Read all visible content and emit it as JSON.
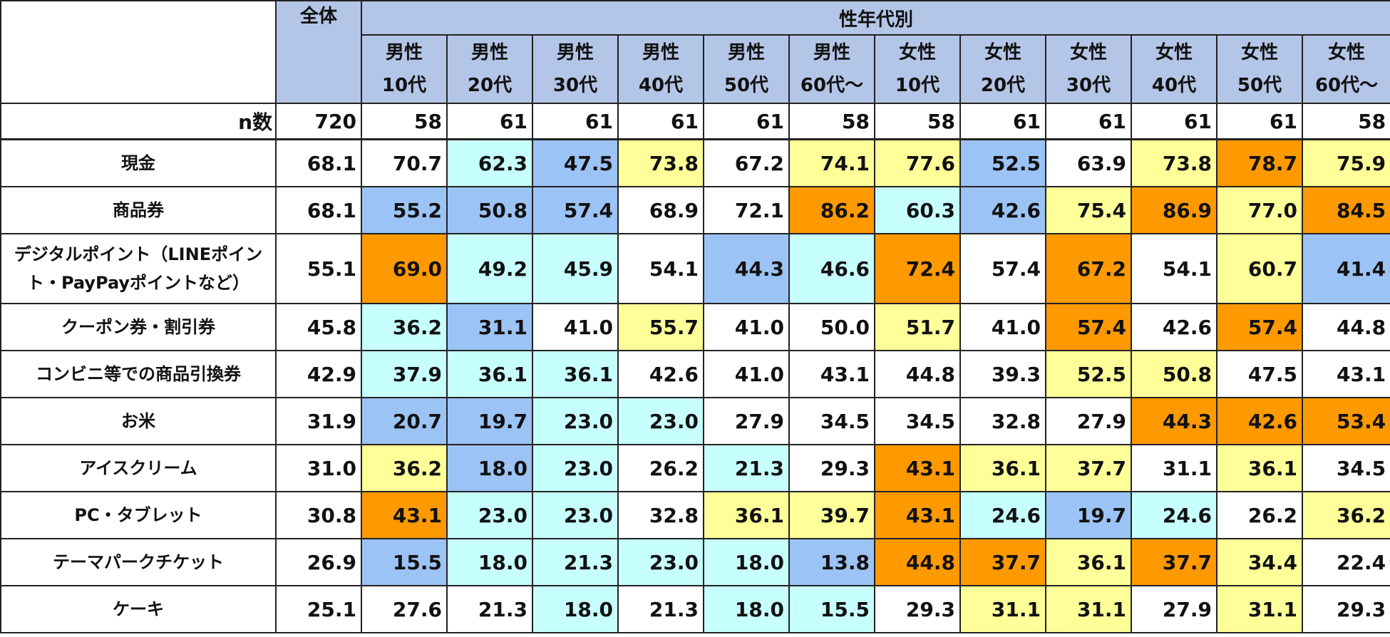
{
  "chart_data": {
    "type": "table",
    "header": {
      "group_label": "性年代別",
      "total_label": "全体",
      "columns": [
        [
          "男性",
          "10代"
        ],
        [
          "男性",
          "20代"
        ],
        [
          "男性",
          "30代"
        ],
        [
          "男性",
          "40代"
        ],
        [
          "男性",
          "50代"
        ],
        [
          "男性",
          "60代〜"
        ],
        [
          "女性",
          "10代"
        ],
        [
          "女性",
          "20代"
        ],
        [
          "女性",
          "30代"
        ],
        [
          "女性",
          "40代"
        ],
        [
          "女性",
          "50代"
        ],
        [
          "女性",
          "60代〜"
        ]
      ]
    },
    "n_label": "n数",
    "n_values": [
      "720",
      "58",
      "61",
      "61",
      "61",
      "61",
      "58",
      "58",
      "61",
      "61",
      "61",
      "61",
      "58"
    ],
    "cell_colors": {
      "none": "#ffffff",
      "light_blue": "#c7ffff",
      "blue": "#9cc3f5",
      "yellow": "#ffff99",
      "orange": "#ff9900"
    },
    "rows": [
      {
        "label": "現金",
        "values": [
          "68.1",
          "70.7",
          "62.3",
          "47.5",
          "73.8",
          "67.2",
          "74.1",
          "77.6",
          "52.5",
          "63.9",
          "73.8",
          "78.7",
          "75.9"
        ],
        "colors": [
          "none",
          "none",
          "light_blue",
          "blue",
          "yellow",
          "none",
          "yellow",
          "yellow",
          "blue",
          "none",
          "yellow",
          "orange",
          "yellow"
        ]
      },
      {
        "label": "商品券",
        "values": [
          "68.1",
          "55.2",
          "50.8",
          "57.4",
          "68.9",
          "72.1",
          "86.2",
          "60.3",
          "42.6",
          "75.4",
          "86.9",
          "77.0",
          "84.5"
        ],
        "colors": [
          "none",
          "blue",
          "blue",
          "blue",
          "none",
          "none",
          "orange",
          "light_blue",
          "blue",
          "yellow",
          "orange",
          "yellow",
          "orange"
        ]
      },
      {
        "label": "デジタルポイント（LINEポイント・PayPayポイントなど）",
        "values": [
          "55.1",
          "69.0",
          "49.2",
          "45.9",
          "54.1",
          "44.3",
          "46.6",
          "72.4",
          "57.4",
          "67.2",
          "54.1",
          "60.7",
          "41.4"
        ],
        "colors": [
          "none",
          "orange",
          "light_blue",
          "light_blue",
          "none",
          "blue",
          "light_blue",
          "orange",
          "none",
          "orange",
          "none",
          "yellow",
          "blue"
        ]
      },
      {
        "label": "クーポン券・割引券",
        "values": [
          "45.8",
          "36.2",
          "31.1",
          "41.0",
          "55.7",
          "41.0",
          "50.0",
          "51.7",
          "41.0",
          "57.4",
          "42.6",
          "57.4",
          "44.8"
        ],
        "colors": [
          "none",
          "light_blue",
          "blue",
          "none",
          "yellow",
          "none",
          "none",
          "yellow",
          "none",
          "orange",
          "none",
          "orange",
          "none"
        ]
      },
      {
        "label": "コンビニ等での商品引換券",
        "values": [
          "42.9",
          "37.9",
          "36.1",
          "36.1",
          "42.6",
          "41.0",
          "43.1",
          "44.8",
          "39.3",
          "52.5",
          "50.8",
          "47.5",
          "43.1"
        ],
        "colors": [
          "none",
          "light_blue",
          "light_blue",
          "light_blue",
          "none",
          "none",
          "none",
          "none",
          "none",
          "yellow",
          "yellow",
          "none",
          "none"
        ]
      },
      {
        "label": "お米",
        "values": [
          "31.9",
          "20.7",
          "19.7",
          "23.0",
          "23.0",
          "27.9",
          "34.5",
          "34.5",
          "32.8",
          "27.9",
          "44.3",
          "42.6",
          "53.4"
        ],
        "colors": [
          "none",
          "blue",
          "blue",
          "light_blue",
          "light_blue",
          "none",
          "none",
          "none",
          "none",
          "none",
          "orange",
          "orange",
          "orange"
        ]
      },
      {
        "label": "アイスクリーム",
        "values": [
          "31.0",
          "36.2",
          "18.0",
          "23.0",
          "26.2",
          "21.3",
          "29.3",
          "43.1",
          "36.1",
          "37.7",
          "31.1",
          "36.1",
          "34.5"
        ],
        "colors": [
          "none",
          "yellow",
          "blue",
          "light_blue",
          "none",
          "light_blue",
          "none",
          "orange",
          "yellow",
          "yellow",
          "none",
          "yellow",
          "none"
        ]
      },
      {
        "label": "PC・タブレット",
        "values": [
          "30.8",
          "43.1",
          "23.0",
          "23.0",
          "32.8",
          "36.1",
          "39.7",
          "43.1",
          "24.6",
          "19.7",
          "24.6",
          "26.2",
          "36.2"
        ],
        "colors": [
          "none",
          "orange",
          "light_blue",
          "light_blue",
          "none",
          "yellow",
          "yellow",
          "orange",
          "light_blue",
          "blue",
          "light_blue",
          "none",
          "yellow"
        ]
      },
      {
        "label": "テーマパークチケット",
        "values": [
          "26.9",
          "15.5",
          "18.0",
          "21.3",
          "23.0",
          "18.0",
          "13.8",
          "44.8",
          "37.7",
          "36.1",
          "37.7",
          "34.4",
          "22.4"
        ],
        "colors": [
          "none",
          "blue",
          "light_blue",
          "light_blue",
          "light_blue",
          "light_blue",
          "blue",
          "orange",
          "orange",
          "yellow",
          "orange",
          "yellow",
          "none"
        ]
      },
      {
        "label": "ケーキ",
        "values": [
          "25.1",
          "27.6",
          "21.3",
          "18.0",
          "21.3",
          "18.0",
          "15.5",
          "29.3",
          "31.1",
          "31.1",
          "27.9",
          "31.1",
          "29.3"
        ],
        "colors": [
          "none",
          "none",
          "none",
          "light_blue",
          "none",
          "light_blue",
          "light_blue",
          "none",
          "yellow",
          "yellow",
          "none",
          "yellow",
          "none"
        ]
      }
    ]
  }
}
